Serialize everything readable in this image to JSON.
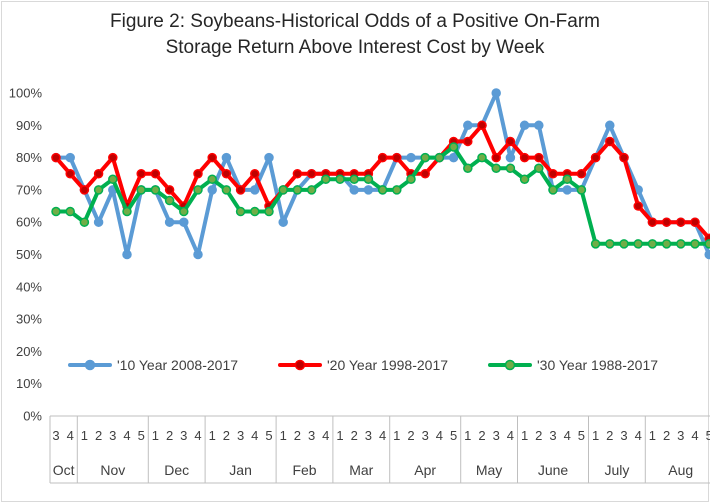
{
  "colors": {
    "c10": "#5b9bd5",
    "c20": "#ff0000",
    "c20_marker": "#c00000",
    "c30": "#00b050",
    "c30_marker": "#70ad47",
    "axis": "#bfbfbf",
    "grid": "#d9d9d9",
    "text": "#404040"
  },
  "chart_data": {
    "type": "line",
    "title": "Figure 2: Soybeans-Historical Odds of a Positive On-Farm Storage Return Above Interest Cost by Week",
    "title_lines": [
      "Figure 2: Soybeans-Historical Odds of a Positive On-Farm",
      "Storage Return Above Interest Cost by Week"
    ],
    "xlabel": "",
    "ylabel": "",
    "ylim": [
      0,
      100
    ],
    "yticks": [
      "0%",
      "10%",
      "20%",
      "30%",
      "40%",
      "50%",
      "60%",
      "70%",
      "80%",
      "90%",
      "100%"
    ],
    "grid": false,
    "legend_position": "bottom-inside",
    "categories": [
      "3",
      "4",
      "1",
      "2",
      "3",
      "4",
      "5",
      "1",
      "2",
      "3",
      "4",
      "1",
      "2",
      "3",
      "4",
      "5",
      "1",
      "2",
      "3",
      "4",
      "1",
      "2",
      "3",
      "4",
      "1",
      "2",
      "3",
      "4",
      "5",
      "1",
      "2",
      "3",
      "4",
      "1",
      "2",
      "3",
      "4",
      "5",
      "1",
      "2",
      "3",
      "4",
      "1",
      "2",
      "3",
      "4",
      "5"
    ],
    "months": [
      {
        "label": "Oct",
        "weeks": 2
      },
      {
        "label": "Nov",
        "weeks": 5
      },
      {
        "label": "Dec",
        "weeks": 4
      },
      {
        "label": "Jan",
        "weeks": 5
      },
      {
        "label": "Feb",
        "weeks": 4
      },
      {
        "label": "Mar",
        "weeks": 4
      },
      {
        "label": "Apr",
        "weeks": 5
      },
      {
        "label": "May",
        "weeks": 4
      },
      {
        "label": "June",
        "weeks": 5
      },
      {
        "label": "July",
        "weeks": 4
      },
      {
        "label": "Aug",
        "weeks": 5
      }
    ],
    "series": [
      {
        "name": "'10 Year 2008-2017",
        "color": "#5b9bd5",
        "values": [
          80,
          80,
          70,
          60,
          70,
          50,
          70,
          70,
          60,
          60,
          50,
          70,
          80,
          70,
          70,
          80,
          60,
          70,
          75,
          75,
          75,
          70,
          70,
          70,
          80,
          80,
          80,
          80,
          80,
          90,
          90,
          100,
          80,
          90,
          90,
          70,
          70,
          70,
          80,
          90,
          80,
          70,
          60,
          60,
          60,
          60,
          50
        ]
      },
      {
        "name": "'20 Year 1998-2017",
        "color": "#ff0000",
        "values": [
          80,
          75,
          70,
          75,
          80,
          65,
          75,
          75,
          70,
          65,
          75,
          80,
          75,
          70,
          75,
          65,
          70,
          75,
          75,
          75,
          75,
          75,
          75,
          80,
          80,
          75,
          75,
          80,
          85,
          85,
          90,
          80,
          85,
          80,
          80,
          75,
          75,
          75,
          80,
          85,
          80,
          65,
          60,
          60,
          60,
          60,
          55
        ]
      },
      {
        "name": "'30 Year 1988-2017",
        "color": "#00b050",
        "values": [
          63.3,
          63.3,
          60,
          70,
          73.3,
          63.3,
          70,
          70,
          66.7,
          63.3,
          70,
          73.3,
          70,
          63.3,
          63.3,
          63.3,
          70,
          70,
          70,
          73.3,
          73.3,
          73.3,
          73.3,
          70,
          70,
          73.3,
          80,
          80,
          83.3,
          76.7,
          80,
          76.7,
          76.7,
          73.3,
          76.7,
          70,
          73.3,
          70,
          53.3,
          53.3,
          53.3,
          53.3,
          53.3,
          53.3,
          53.3,
          53.3,
          53.3
        ]
      }
    ]
  }
}
